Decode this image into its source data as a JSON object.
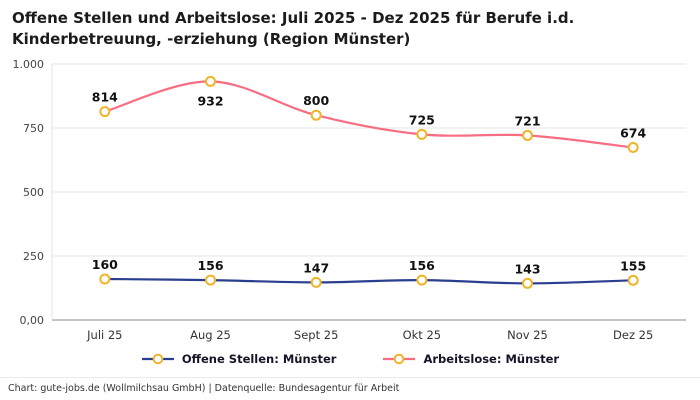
{
  "title": "Offene Stellen und Arbeitslose: Juli 2025 - Dez 2025 für Berufe i.d. Kinderbetreuung, -erziehung (Region Münster)",
  "chart_data": {
    "type": "line",
    "categories": [
      "Juli 25",
      "Aug 25",
      "Sept 25",
      "Okt 25",
      "Nov 25",
      "Dez 25"
    ],
    "series": [
      {
        "name": "Offene Stellen: Münster",
        "color": "#2a3f90",
        "values": [
          160,
          156,
          147,
          156,
          143,
          155
        ]
      },
      {
        "name": "Arbeitslose: Münster",
        "color": "#f76e83",
        "values": [
          814,
          932,
          800,
          725,
          721,
          674
        ]
      }
    ],
    "marker_color": "#f0b429",
    "ylim": [
      0,
      1000
    ],
    "yticks": [
      0,
      250,
      500,
      750,
      1000
    ],
    "ytick_labels": [
      "0,00",
      "250",
      "500",
      "750",
      "1.000"
    ],
    "grid": true,
    "legend_position": "bottom",
    "title": "Offene Stellen und Arbeitslose: Juli 2025 - Dez 2025 für Berufe i.d. Kinderbetreuung, -erziehung (Region Münster)",
    "xlabel": "",
    "ylabel": ""
  },
  "footer": "Chart: gute-jobs.de (Wollmilchsau GmbH) | Datenquelle: Bundesagentur für Arbeit"
}
